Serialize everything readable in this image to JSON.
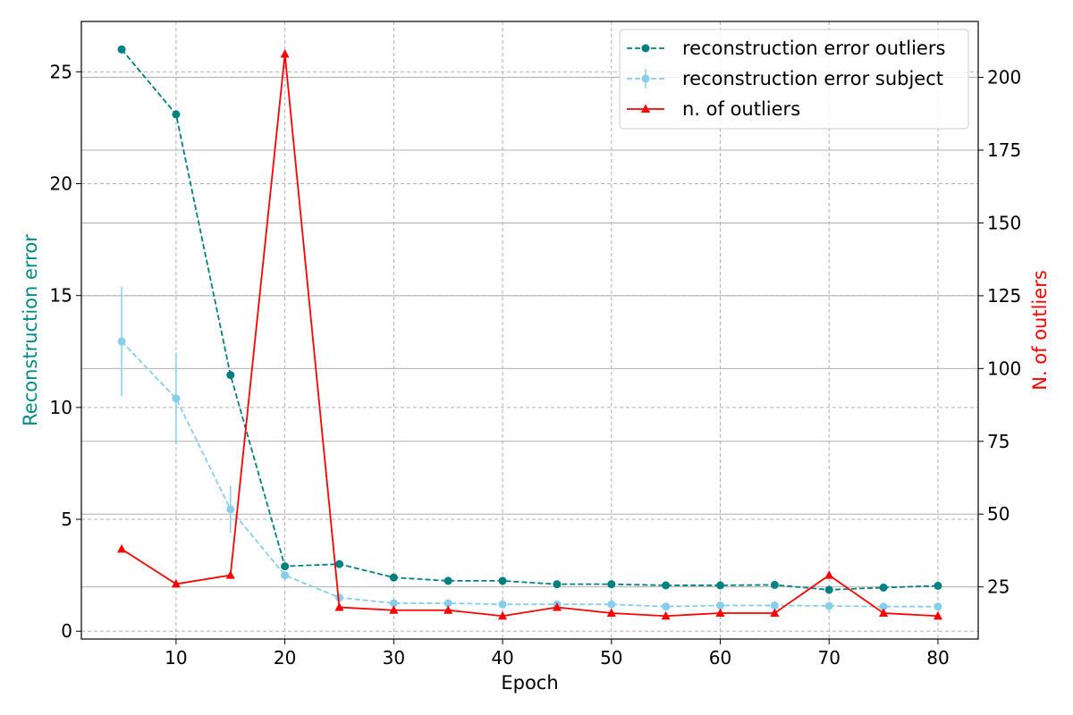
{
  "chart_data": {
    "type": "line",
    "xlabel": "Epoch",
    "ylabel_left": "Reconstruction error",
    "ylabel_right": "N. of outliers",
    "xlim": [
      1.3,
      83.7
    ],
    "ylim_left": [
      -0.35,
      27.25
    ],
    "ylim_right": [
      7.1,
      219.2
    ],
    "x_ticks": [
      10,
      20,
      30,
      40,
      50,
      60,
      70,
      80
    ],
    "y_ticks_left": [
      0,
      5,
      10,
      15,
      20,
      25
    ],
    "y_ticks_right": [
      25,
      50,
      75,
      100,
      125,
      150,
      175,
      200
    ],
    "grid": true,
    "legend_position": "top-right",
    "colors": {
      "outliers_error": "#008080",
      "subject_error": "#87ceeb",
      "n_outliers": "#ff0000",
      "left_axis_label": "#008b8b",
      "right_axis_label": "#ff0000"
    },
    "series": [
      {
        "name": "reconstruction error outliers",
        "axis": "left",
        "style": "dashed",
        "marker": "circle",
        "color": "#008080",
        "x": [
          5,
          10,
          15,
          20,
          25,
          30,
          35,
          40,
          45,
          50,
          55,
          60,
          65,
          70,
          75,
          80
        ],
        "y": [
          26.0,
          23.1,
          11.45,
          2.9,
          3.0,
          2.4,
          2.25,
          2.25,
          2.1,
          2.1,
          2.05,
          2.05,
          2.07,
          1.85,
          1.95,
          2.03
        ]
      },
      {
        "name": "reconstruction error subject",
        "axis": "left",
        "style": "dashed",
        "marker": "circle",
        "color": "#87ceeb",
        "x": [
          5,
          10,
          15,
          20,
          25,
          30,
          35,
          40,
          45,
          50,
          55,
          60,
          65,
          70,
          75,
          80
        ],
        "y": [
          12.95,
          10.4,
          5.45,
          2.5,
          1.5,
          1.25,
          1.25,
          1.2,
          1.2,
          1.2,
          1.1,
          1.15,
          1.15,
          1.13,
          1.1,
          1.1
        ],
        "err": [
          2.45,
          2.05,
          1.05,
          0.15,
          0.12,
          0.1,
          0.1,
          0.1,
          0.08,
          0.08,
          0.08,
          0.08,
          0.08,
          0.08,
          0.08,
          0.08
        ]
      },
      {
        "name": "n. of outliers",
        "axis": "right",
        "style": "solid",
        "marker": "triangle",
        "color": "#ff0000",
        "x": [
          5,
          10,
          15,
          20,
          25,
          30,
          35,
          40,
          45,
          50,
          55,
          60,
          65,
          70,
          75,
          80
        ],
        "y": [
          38,
          26,
          29,
          208,
          18,
          17,
          17,
          15,
          18,
          16,
          15,
          16,
          16,
          29,
          16,
          15
        ]
      }
    ]
  }
}
